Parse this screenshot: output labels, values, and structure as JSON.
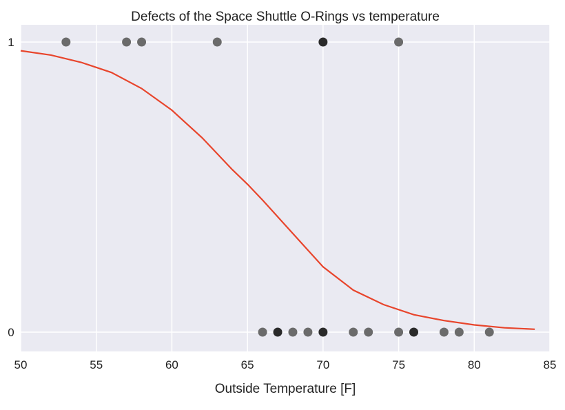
{
  "chart_data": {
    "type": "scatter",
    "title": "Defects of the Space Shuttle O-Rings vs temperature",
    "xlabel": "Outside Temperature [F]",
    "ylabel": "",
    "xlim": [
      50,
      85
    ],
    "ylim": [
      0,
      1
    ],
    "xticks": [
      50,
      55,
      60,
      65,
      70,
      75,
      80,
      85
    ],
    "yticks": [
      0,
      1
    ],
    "grid": true,
    "background": "#eaeaf2",
    "grid_color": "#ffffff",
    "series": [
      {
        "kind": "points",
        "color": "#6b6b6b",
        "overlap_color": "#2a2a2a",
        "points": [
          {
            "x": 53,
            "y": 1
          },
          {
            "x": 57,
            "y": 1
          },
          {
            "x": 58,
            "y": 1
          },
          {
            "x": 63,
            "y": 1
          },
          {
            "x": 70,
            "y": 1,
            "overlap": true
          },
          {
            "x": 75,
            "y": 1
          },
          {
            "x": 66,
            "y": 0
          },
          {
            "x": 67,
            "y": 0,
            "overlap": true
          },
          {
            "x": 68,
            "y": 0
          },
          {
            "x": 69,
            "y": 0
          },
          {
            "x": 70,
            "y": 0,
            "overlap": true
          },
          {
            "x": 72,
            "y": 0
          },
          {
            "x": 73,
            "y": 0
          },
          {
            "x": 75,
            "y": 0
          },
          {
            "x": 76,
            "y": 0,
            "overlap": true
          },
          {
            "x": 78,
            "y": 0
          },
          {
            "x": 79,
            "y": 0
          },
          {
            "x": 81,
            "y": 0
          }
        ]
      },
      {
        "kind": "curve",
        "color": "#e8452c",
        "x": [
          50,
          52,
          54,
          56,
          58,
          60,
          62,
          64,
          65,
          66,
          68,
          70,
          72,
          74,
          76,
          78,
          80,
          82,
          84
        ],
        "y": [
          0.97,
          0.955,
          0.93,
          0.895,
          0.84,
          0.765,
          0.67,
          0.56,
          0.51,
          0.455,
          0.34,
          0.225,
          0.145,
          0.095,
          0.06,
          0.04,
          0.025,
          0.015,
          0.01
        ]
      }
    ]
  }
}
